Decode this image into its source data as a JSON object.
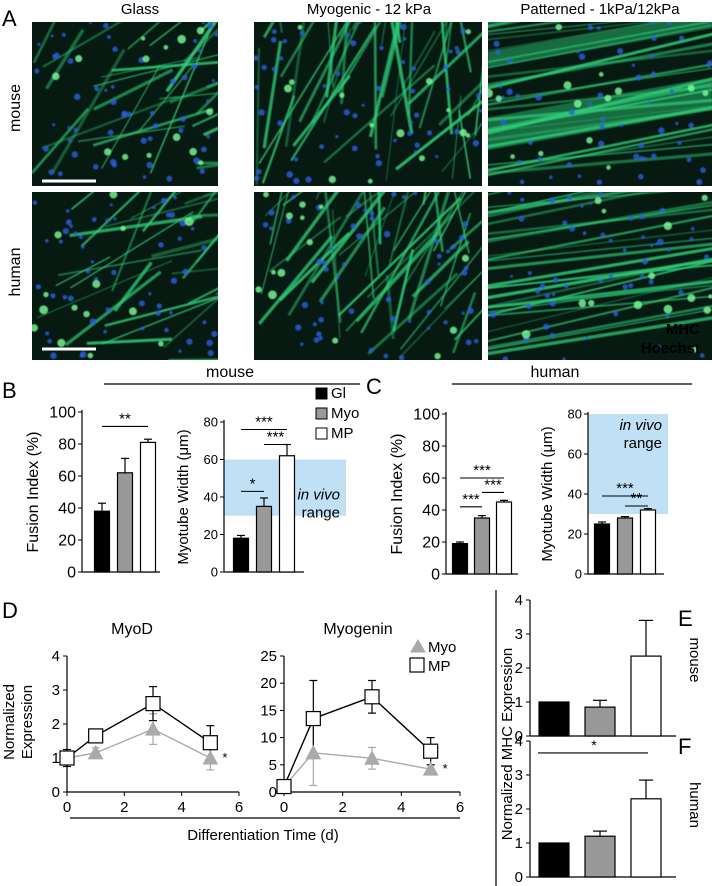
{
  "panel_letters": {
    "A": "A",
    "B": "B",
    "C": "C",
    "D": "D",
    "E": "E",
    "F": "F"
  },
  "micro": {
    "columns": [
      "Glass",
      "Myogenic - 12 kPa",
      "Patterned - 1kPa/12kPa"
    ],
    "rows": [
      "mouse",
      "human"
    ],
    "stain_labels": [
      "MHC",
      "Hoechst"
    ],
    "colors": {
      "myotube": "#2fd07a",
      "nuclei": "#2a5ee0",
      "background": "#061a12",
      "stain_mhc": "#2fbf5a",
      "stain_hoechst": "#2b6ee0"
    }
  },
  "legend_B": {
    "items": [
      "Gl",
      "Myo",
      "MP"
    ],
    "fills": [
      "#000000",
      "#999999",
      "#ffffff"
    ]
  },
  "group_labels": {
    "B": "mouse",
    "C": "human"
  },
  "in_vivo": {
    "line1": "in vivo",
    "line2": "range",
    "color": "#bfe0f5"
  },
  "sig_labels": {
    "B_fusion": "**",
    "B_width_1": "***",
    "B_width_2": "***",
    "B_width_3": "*",
    "C_fusion_1": "***",
    "C_fusion_2": "***",
    "C_fusion_3": "***",
    "C_width_1": "***",
    "C_width_2": "**",
    "D_myod_star": "*",
    "D_myog_star": "*",
    "F_star": "*"
  },
  "legend_D": {
    "items": [
      "Myo",
      "MP"
    ]
  },
  "panel_D_labels": {
    "ylabel_1": "Normalized",
    "ylabel_2": "Expression",
    "xlabel": "Differentiation Time (d)"
  },
  "panel_EF_labels": {
    "ylabel": "Normalized MHC Expression",
    "E_side": "mouse",
    "F_side": "human"
  },
  "chart_data": [
    {
      "id": "B_fusion",
      "type": "bar",
      "categories": [
        "Gl",
        "Myo",
        "MP"
      ],
      "values": [
        38,
        62,
        81
      ],
      "errors": [
        5,
        9,
        2
      ],
      "ylabel": "Fusion Index (%)",
      "ylim": [
        0,
        100
      ],
      "yticks": [
        0,
        20,
        40,
        60,
        80,
        100
      ],
      "colors": [
        "#000000",
        "#999999",
        "#ffffff"
      ]
    },
    {
      "id": "B_width",
      "type": "bar",
      "categories": [
        "Gl",
        "Myo",
        "MP"
      ],
      "values": [
        18,
        35,
        62
      ],
      "errors": [
        1.5,
        4.5,
        6
      ],
      "ylabel": "Myotube Width (μm)",
      "ylim": [
        0,
        80
      ],
      "yticks": [
        0,
        20,
        40,
        60,
        80
      ],
      "in_vivo_range": [
        30,
        60
      ],
      "colors": [
        "#000000",
        "#999999",
        "#ffffff"
      ]
    },
    {
      "id": "C_fusion",
      "type": "bar",
      "categories": [
        "Gl",
        "Myo",
        "MP"
      ],
      "values": [
        19,
        35,
        45
      ],
      "errors": [
        1,
        1.5,
        1
      ],
      "ylabel": "Fusion Index (%)",
      "ylim": [
        0,
        100
      ],
      "yticks": [
        0,
        20,
        40,
        60,
        80,
        100
      ],
      "colors": [
        "#000000",
        "#999999",
        "#ffffff"
      ]
    },
    {
      "id": "C_width",
      "type": "bar",
      "categories": [
        "Gl",
        "Myo",
        "MP"
      ],
      "values": [
        25,
        28,
        32
      ],
      "errors": [
        1,
        0.7,
        0.7
      ],
      "ylabel": "Myotube Width (μm)",
      "ylim": [
        0,
        80
      ],
      "yticks": [
        0,
        20,
        40,
        60,
        80
      ],
      "in_vivo_range": [
        30,
        80
      ],
      "colors": [
        "#000000",
        "#999999",
        "#ffffff"
      ]
    },
    {
      "id": "D_myod",
      "type": "line",
      "title": "MyoD",
      "xlim": [
        0,
        6
      ],
      "xticks": [
        0,
        2,
        4,
        6
      ],
      "ylim": [
        0,
        4
      ],
      "yticks": [
        0,
        1,
        2,
        3,
        4
      ],
      "series": [
        {
          "name": "Myo",
          "x": [
            0,
            1,
            3,
            5
          ],
          "values": [
            1.0,
            1.15,
            1.85,
            1.0
          ],
          "errors": [
            0.15,
            0.15,
            0.45,
            0.35
          ]
        },
        {
          "name": "MP",
          "x": [
            0,
            1,
            3,
            5
          ],
          "values": [
            1.0,
            1.65,
            2.6,
            1.45
          ],
          "errors": [
            0.25,
            0.2,
            0.5,
            0.5
          ]
        }
      ]
    },
    {
      "id": "D_myogenin",
      "type": "line",
      "title": "Myogenin",
      "xlim": [
        0,
        6
      ],
      "xticks": [
        0,
        2,
        4,
        6
      ],
      "ylim": [
        0,
        25
      ],
      "yticks": [
        0,
        5,
        10,
        15,
        20,
        25
      ],
      "series": [
        {
          "name": "Myo",
          "x": [
            0,
            1,
            3,
            5
          ],
          "values": [
            1.0,
            7.2,
            6.2,
            4.2
          ],
          "errors": [
            0.3,
            6,
            2,
            0.8
          ]
        },
        {
          "name": "MP",
          "x": [
            0,
            1,
            3,
            5
          ],
          "values": [
            1.0,
            13.5,
            17.5,
            7.5
          ],
          "errors": [
            0.3,
            7,
            3,
            2.5
          ]
        }
      ]
    },
    {
      "id": "E",
      "type": "bar",
      "categories": [
        "Gl",
        "Myo",
        "MP"
      ],
      "values": [
        1.0,
        0.85,
        2.35
      ],
      "errors": [
        0,
        0.2,
        1.05
      ],
      "ylim": [
        0,
        4
      ],
      "yticks": [
        0,
        1,
        2,
        3,
        4
      ],
      "colors": [
        "#000000",
        "#999999",
        "#ffffff"
      ]
    },
    {
      "id": "F",
      "type": "bar",
      "categories": [
        "Gl",
        "Myo",
        "MP"
      ],
      "values": [
        1.0,
        1.2,
        2.3
      ],
      "errors": [
        0,
        0.15,
        0.55
      ],
      "ylim": [
        0,
        4
      ],
      "yticks": [
        0,
        1,
        2,
        3,
        4
      ],
      "colors": [
        "#000000",
        "#999999",
        "#ffffff"
      ]
    }
  ]
}
